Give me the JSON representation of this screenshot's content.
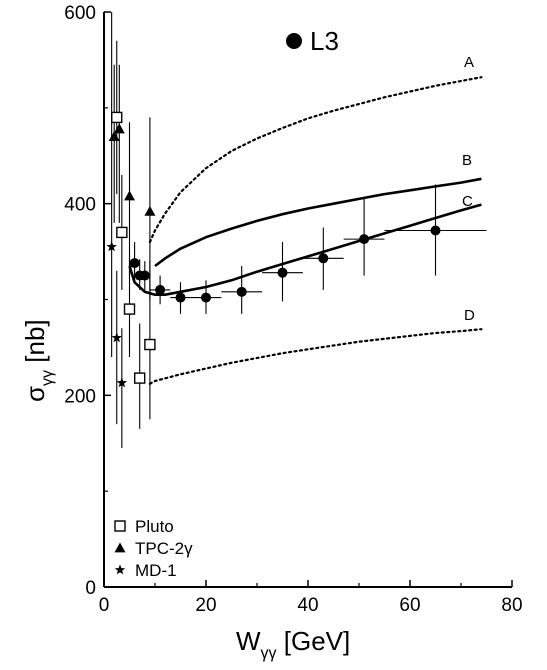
{
  "chart_data": {
    "type": "scatter",
    "title": "",
    "inset_label": "L3",
    "xlabel": {
      "main": "W",
      "sub": "γγ",
      "unit": "[GeV]"
    },
    "ylabel": {
      "main": "σ",
      "sub": "γγ",
      "unit": "[nb]"
    },
    "xlim": [
      0,
      80
    ],
    "ylim": [
      0,
      600
    ],
    "xticks": [
      0,
      20,
      40,
      60,
      80
    ],
    "yticks": [
      0,
      200,
      400,
      600
    ],
    "grid": false,
    "legend_position": "bottom-left",
    "series": [
      {
        "name": "L3",
        "marker": "filled-circle",
        "points": [
          {
            "x": 6,
            "y": 338,
            "ylo": 320,
            "yhi": 360,
            "xlo": 5,
            "xhi": 7
          },
          {
            "x": 7,
            "y": 325,
            "ylo": 310,
            "yhi": 342,
            "xlo": 6,
            "xhi": 8
          },
          {
            "x": 8,
            "y": 325,
            "ylo": 310,
            "yhi": 340,
            "xlo": 7,
            "xhi": 9
          },
          {
            "x": 11,
            "y": 310,
            "ylo": 295,
            "yhi": 325,
            "xlo": 9,
            "xhi": 13
          },
          {
            "x": 15,
            "y": 302,
            "ylo": 285,
            "yhi": 318,
            "xlo": 13,
            "xhi": 17
          },
          {
            "x": 20,
            "y": 302,
            "ylo": 285,
            "yhi": 320,
            "xlo": 17,
            "xhi": 23
          },
          {
            "x": 27,
            "y": 308,
            "ylo": 285,
            "yhi": 335,
            "xlo": 23,
            "xhi": 31
          },
          {
            "x": 35,
            "y": 328,
            "ylo": 298,
            "yhi": 360,
            "xlo": 31,
            "xhi": 39
          },
          {
            "x": 43,
            "y": 343,
            "ylo": 310,
            "yhi": 375,
            "xlo": 39,
            "xhi": 47
          },
          {
            "x": 51,
            "y": 363,
            "ylo": 325,
            "yhi": 405,
            "xlo": 47,
            "xhi": 55
          },
          {
            "x": 65,
            "y": 372,
            "ylo": 325,
            "yhi": 420,
            "xlo": 55,
            "xhi": 75
          }
        ]
      },
      {
        "name": "Pluto",
        "marker": "open-square",
        "points": [
          {
            "x": 2.5,
            "y": 490,
            "ylo": 410,
            "yhi": 570
          },
          {
            "x": 3.5,
            "y": 370,
            "ylo": 310,
            "yhi": 430
          },
          {
            "x": 5,
            "y": 290,
            "ylo": 240,
            "yhi": 345
          },
          {
            "x": 7,
            "y": 218,
            "ylo": 165,
            "yhi": 275
          },
          {
            "x": 9,
            "y": 253,
            "ylo": 175,
            "yhi": 340
          }
        ]
      },
      {
        "name": "TPC-2γ",
        "marker": "filled-triangle",
        "points": [
          {
            "x": 2,
            "y": 470,
            "ylo": 380,
            "yhi": 545
          },
          {
            "x": 3,
            "y": 478,
            "ylo": 380,
            "yhi": 545
          },
          {
            "x": 5,
            "y": 408,
            "ylo": 325,
            "yhi": 485
          },
          {
            "x": 9,
            "y": 392,
            "ylo": 300,
            "yhi": 490
          }
        ]
      },
      {
        "name": "MD-1",
        "marker": "star",
        "points": [
          {
            "x": 1.5,
            "y": 355,
            "ylo": 240,
            "yhi": 600
          },
          {
            "x": 2.5,
            "y": 260,
            "ylo": 170,
            "yhi": 330
          },
          {
            "x": 3.5,
            "y": 213,
            "ylo": 145,
            "yhi": 270
          }
        ]
      }
    ],
    "curves": [
      {
        "name": "A",
        "style": "dotted",
        "x": [
          9,
          10,
          12,
          15,
          20,
          25,
          30,
          35,
          40,
          45,
          50,
          55,
          60,
          65,
          70,
          74
        ],
        "y": [
          360,
          372,
          390,
          412,
          437,
          455,
          468,
          479,
          489,
          497,
          504,
          511,
          517,
          523,
          528,
          532
        ]
      },
      {
        "name": "B",
        "style": "solid",
        "x": [
          10,
          12,
          15,
          20,
          25,
          30,
          35,
          40,
          45,
          50,
          55,
          60,
          65,
          70,
          74
        ],
        "y": [
          335,
          343,
          353,
          365,
          374,
          382,
          389,
          395,
          400,
          405,
          410,
          414,
          418,
          422,
          426
        ]
      },
      {
        "name": "C",
        "style": "solid",
        "x": [
          5,
          6,
          8,
          10,
          12,
          15,
          20,
          25,
          30,
          35,
          40,
          45,
          50,
          55,
          60,
          65,
          70,
          74
        ],
        "y": [
          335,
          318,
          308,
          305,
          305,
          308,
          313,
          320,
          329,
          337,
          345,
          353,
          361,
          369,
          377,
          385,
          393,
          399
        ]
      },
      {
        "name": "D",
        "style": "dotted",
        "x": [
          9,
          10,
          15,
          20,
          25,
          30,
          35,
          40,
          45,
          50,
          55,
          60,
          65,
          70,
          74
        ],
        "y": [
          212,
          215,
          222,
          228,
          234,
          239,
          244,
          248,
          252,
          256,
          259,
          262,
          265,
          267,
          269
        ]
      }
    ],
    "curve_label_text": [
      "A",
      "B",
      "C",
      "D"
    ],
    "legend": [
      {
        "marker": "open-square",
        "label": "Pluto"
      },
      {
        "marker": "filled-triangle",
        "label": "TPC-2γ"
      },
      {
        "marker": "star",
        "label": "MD-1"
      }
    ]
  }
}
